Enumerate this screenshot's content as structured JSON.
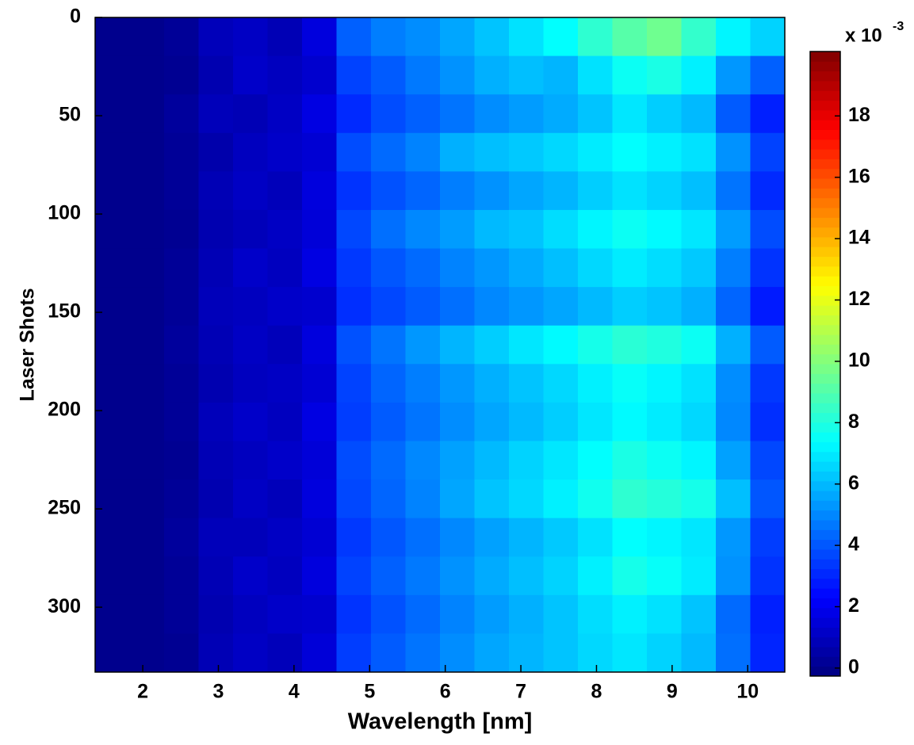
{
  "chart_data": {
    "type": "heatmap",
    "x_label": "Wavelength [nm]",
    "y_label": "Laser Shots",
    "xlim": [
      1.37,
      10.49
    ],
    "ylim": [
      0,
      333
    ],
    "y_reversed": true,
    "xticks": [
      2,
      3,
      4,
      5,
      6,
      7,
      8,
      9,
      10
    ],
    "yticks": [
      0,
      50,
      100,
      150,
      200,
      250,
      300
    ],
    "x_edges": [
      1.37,
      1.826,
      2.282,
      2.738,
      3.194,
      3.65,
      4.106,
      4.562,
      5.018,
      5.474,
      5.93,
      6.386,
      6.842,
      7.298,
      7.754,
      8.21,
      8.666,
      9.122,
      9.578,
      10.034,
      10.49
    ],
    "y_edges": [
      0,
      19.59,
      39.18,
      58.76,
      78.35,
      97.94,
      117.53,
      137.12,
      156.71,
      176.29,
      195.88,
      215.47,
      235.06,
      254.65,
      274.24,
      293.82,
      313.41,
      333
    ],
    "values": [
      [
        0,
        0,
        0.2,
        0.9,
        1.1,
        0.8,
        1.6,
        4.2,
        4.8,
        5.1,
        5.6,
        6.2,
        6.8,
        7.4,
        8.3,
        9.1,
        9.6,
        8.4,
        7.2,
        6.5
      ],
      [
        0,
        0,
        0.1,
        0.7,
        1.2,
        1.0,
        1.3,
        3.6,
        4.1,
        4.7,
        5.2,
        5.8,
        6.1,
        5.9,
        6.8,
        7.6,
        7.9,
        7.1,
        5.3,
        4.2
      ],
      [
        0,
        0,
        0.3,
        0.9,
        0.8,
        1.1,
        1.7,
        3.1,
        3.8,
        4.2,
        4.6,
        5.1,
        5.4,
        5.7,
        6.2,
        6.9,
        6.4,
        6.0,
        4.1,
        2.9
      ],
      [
        0,
        0,
        0.2,
        0.6,
        1.0,
        1.2,
        1.4,
        3.8,
        4.4,
        4.9,
        5.8,
        6.1,
        6.3,
        6.6,
        7.0,
        7.4,
        7.1,
        6.8,
        5.2,
        3.6
      ],
      [
        0,
        0,
        0.2,
        0.8,
        1.1,
        0.9,
        1.6,
        3.3,
        3.9,
        4.3,
        4.8,
        5.2,
        5.6,
        5.9,
        6.4,
        6.8,
        6.5,
        6.1,
        4.6,
        3.1
      ],
      [
        0,
        0,
        0.1,
        0.7,
        0.9,
        1.1,
        1.5,
        3.7,
        4.5,
        5.0,
        5.4,
        6.0,
        6.2,
        6.7,
        7.2,
        7.6,
        7.3,
        6.9,
        5.4,
        3.8
      ],
      [
        0,
        0,
        0.2,
        0.8,
        1.2,
        1.0,
        1.7,
        3.4,
        4.0,
        4.4,
        4.9,
        5.3,
        5.7,
        6.1,
        6.6,
        7.0,
        6.7,
        6.3,
        4.8,
        3.3
      ],
      [
        0,
        0,
        0.2,
        0.9,
        1.0,
        1.2,
        1.3,
        3.2,
        3.7,
        4.1,
        4.5,
        5.0,
        5.3,
        5.6,
        6.0,
        6.4,
        6.2,
        5.8,
        4.3,
        2.8
      ],
      [
        0,
        0,
        0.3,
        0.8,
        1.1,
        0.9,
        1.6,
        3.9,
        4.6,
        5.3,
        5.9,
        6.4,
        6.9,
        7.3,
        7.8,
        8.2,
        8.0,
        7.6,
        5.8,
        4.1
      ],
      [
        0,
        0,
        0.2,
        0.7,
        1.0,
        1.1,
        1.4,
        3.6,
        4.3,
        4.8,
        5.3,
        5.8,
        6.2,
        6.6,
        7.1,
        7.5,
        7.2,
        6.8,
        5.1,
        3.4
      ],
      [
        0,
        0,
        0.2,
        0.9,
        1.2,
        1.0,
        1.7,
        3.5,
        4.1,
        4.6,
        5.1,
        5.6,
        6.0,
        6.4,
        6.9,
        7.3,
        7.0,
        6.6,
        5.0,
        3.2
      ],
      [
        0,
        0,
        0.1,
        0.8,
        1.0,
        1.2,
        1.5,
        3.8,
        4.4,
        5.0,
        5.5,
        6.0,
        6.5,
        6.9,
        7.4,
        7.9,
        7.6,
        7.2,
        5.5,
        3.7
      ],
      [
        0,
        0,
        0.2,
        0.7,
        1.1,
        0.9,
        1.6,
        3.7,
        4.3,
        4.9,
        5.6,
        6.2,
        6.6,
        7.1,
        7.7,
        8.3,
        8.1,
        7.8,
        6.1,
        4.0
      ],
      [
        0,
        0,
        0.3,
        0.9,
        0.9,
        1.1,
        1.4,
        3.4,
        4.0,
        4.5,
        5.0,
        5.5,
        5.9,
        6.3,
        6.8,
        7.4,
        7.2,
        6.9,
        5.3,
        3.5
      ],
      [
        0,
        0,
        0.2,
        0.8,
        1.2,
        1.0,
        1.6,
        3.6,
        4.2,
        4.7,
        5.2,
        5.7,
        6.1,
        6.5,
        7.1,
        7.8,
        7.5,
        7.0,
        5.2,
        3.3
      ],
      [
        0,
        0,
        0.2,
        0.7,
        1.0,
        1.2,
        1.3,
        3.3,
        3.9,
        4.4,
        4.9,
        5.4,
        5.8,
        6.2,
        6.7,
        7.1,
        6.8,
        6.2,
        4.4,
        2.9
      ],
      [
        0,
        0,
        0.1,
        0.8,
        1.1,
        0.9,
        1.5,
        3.5,
        4.1,
        4.6,
        5.1,
        5.6,
        5.9,
        6.2,
        6.6,
        6.9,
        6.5,
        6.0,
        4.5,
        3.0
      ]
    ],
    "colormap": "jet",
    "clim": [
      -0.26,
      20.1
    ],
    "cticks": [
      0,
      2,
      4,
      6,
      8,
      10,
      12,
      14,
      16,
      18
    ],
    "colorbar_label": "x 10",
    "colorbar_label_exponent": "-3"
  }
}
